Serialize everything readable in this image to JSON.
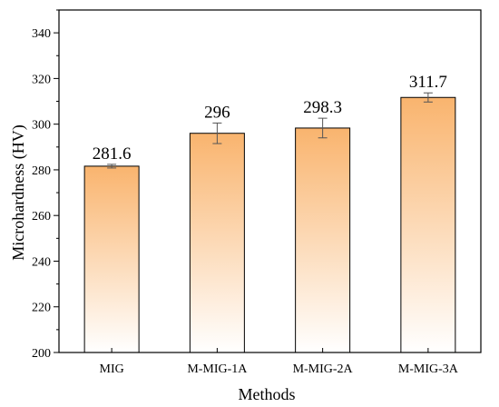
{
  "colors": {
    "bar_top": "#f9b46e",
    "bar_bottom": "#ffffff",
    "axis": "#000000",
    "error_bar": "#555555"
  },
  "chart_data": {
    "type": "bar",
    "title": "",
    "xlabel": "Methods",
    "ylabel": "Microhardness (HV)",
    "categories": [
      "MIG",
      "M-MIG-1A",
      "M-MIG-2A",
      "M-MIG-3A"
    ],
    "values": [
      281.6,
      296,
      298.3,
      311.7
    ],
    "value_labels": [
      "281.6",
      "296",
      "298.3",
      "311.7"
    ],
    "errors": [
      0.8,
      4.5,
      4.3,
      2.0
    ],
    "ylim": [
      200,
      350
    ],
    "yticks": [
      200,
      220,
      240,
      260,
      280,
      300,
      320,
      340
    ],
    "grid": false,
    "legend": "none"
  }
}
